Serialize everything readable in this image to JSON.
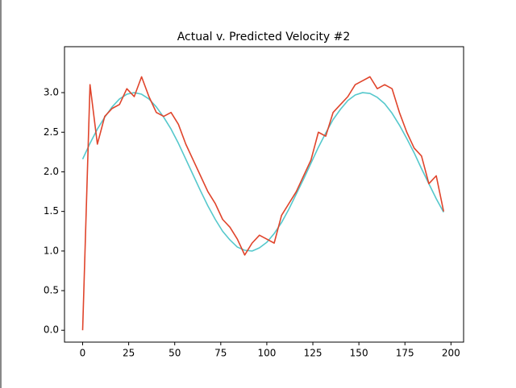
{
  "chart_data": {
    "type": "line",
    "title": "Actual v. Predicted Velocity #2",
    "x": [
      0,
      4,
      8,
      12,
      16,
      20,
      24,
      28,
      32,
      36,
      40,
      44,
      48,
      52,
      56,
      60,
      64,
      68,
      72,
      76,
      80,
      84,
      88,
      92,
      96,
      100,
      104,
      108,
      112,
      116,
      120,
      124,
      128,
      132,
      136,
      140,
      144,
      148,
      152,
      156,
      160,
      164,
      168,
      172,
      176,
      180,
      184,
      188,
      192,
      196
    ],
    "series": [
      {
        "color": "#55c8cc",
        "values": [
          2.16,
          2.36,
          2.54,
          2.69,
          2.82,
          2.92,
          2.98,
          3.0,
          2.98,
          2.92,
          2.82,
          2.69,
          2.54,
          2.36,
          2.16,
          1.96,
          1.76,
          1.57,
          1.4,
          1.25,
          1.14,
          1.05,
          1.01,
          1.0,
          1.04,
          1.11,
          1.22,
          1.36,
          1.53,
          1.72,
          1.91,
          2.11,
          2.31,
          2.49,
          2.66,
          2.79,
          2.9,
          2.97,
          3.0,
          2.99,
          2.94,
          2.86,
          2.74,
          2.59,
          2.42,
          2.24,
          2.04,
          1.85,
          1.66,
          1.49
        ]
      },
      {
        "color": "#e0442b",
        "values": [
          0.0,
          3.1,
          2.35,
          2.7,
          2.8,
          2.85,
          3.05,
          2.95,
          3.2,
          2.95,
          2.75,
          2.7,
          2.75,
          2.6,
          2.35,
          2.15,
          1.95,
          1.75,
          1.6,
          1.4,
          1.3,
          1.15,
          0.95,
          1.1,
          1.2,
          1.15,
          1.1,
          1.45,
          1.6,
          1.75,
          1.95,
          2.15,
          2.5,
          2.45,
          2.75,
          2.85,
          2.95,
          3.1,
          3.15,
          3.2,
          3.05,
          3.1,
          3.05,
          2.75,
          2.5,
          2.3,
          2.2,
          1.85,
          1.95,
          1.5
        ]
      }
    ],
    "xlim": [
      -9.85,
      206.85
    ],
    "ylim": [
      -0.15,
      3.58
    ],
    "xticks": [
      0,
      25,
      50,
      75,
      100,
      125,
      150,
      175,
      200
    ],
    "yticks": [
      {
        "value": 0,
        "label": "0.0"
      },
      {
        "value": 0.5,
        "label": "0.5"
      },
      {
        "value": 1,
        "label": "1.0"
      },
      {
        "value": 1.5,
        "label": "1.5"
      },
      {
        "value": 2,
        "label": "2.0"
      },
      {
        "value": 2.5,
        "label": "2.5"
      },
      {
        "value": 3,
        "label": "3.0"
      }
    ]
  }
}
